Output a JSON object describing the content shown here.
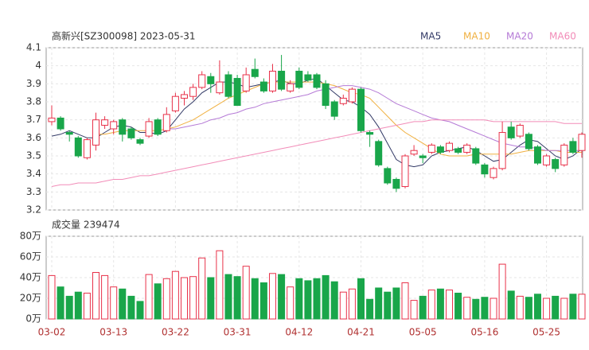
{
  "chart_data": [
    {
      "type": "candlestick",
      "title": "高新兴[SZ300098] 2023-05-31",
      "categories": [
        "03-02",
        null,
        null,
        null,
        null,
        null,
        null,
        "03-13",
        null,
        null,
        null,
        null,
        null,
        null,
        "03-22",
        null,
        null,
        null,
        null,
        null,
        null,
        "03-31",
        null,
        null,
        null,
        null,
        null,
        null,
        "04-12",
        null,
        null,
        null,
        null,
        null,
        null,
        "04-21",
        null,
        null,
        null,
        null,
        null,
        null,
        "05-05",
        null,
        null,
        null,
        null,
        null,
        null,
        "05-16",
        null,
        null,
        null,
        null,
        null,
        null,
        "05-25",
        null,
        null,
        null,
        null
      ],
      "open": [
        3.69,
        3.71,
        3.63,
        3.6,
        3.49,
        3.56,
        3.67,
        3.65,
        3.7,
        3.65,
        3.59,
        3.61,
        3.7,
        3.64,
        3.75,
        3.82,
        3.83,
        3.88,
        3.94,
        3.85,
        3.95,
        3.93,
        3.86,
        3.98,
        3.91,
        3.86,
        3.97,
        3.86,
        3.97,
        3.95,
        3.95,
        3.9,
        3.8,
        3.79,
        3.8,
        3.87,
        3.63,
        3.58,
        3.43,
        3.37,
        3.33,
        3.51,
        3.5,
        3.52,
        3.55,
        3.53,
        3.54,
        3.52,
        3.54,
        3.45,
        3.38,
        3.43,
        3.66,
        3.61,
        3.62,
        3.55,
        3.45,
        3.48,
        3.45,
        3.58,
        3.53
      ],
      "high": [
        3.78,
        3.72,
        3.64,
        3.61,
        3.6,
        3.74,
        3.72,
        3.7,
        3.71,
        3.66,
        3.6,
        3.71,
        3.71,
        3.77,
        3.85,
        3.86,
        3.9,
        3.97,
        3.96,
        4.03,
        3.97,
        3.95,
        3.99,
        4.04,
        3.93,
        4.01,
        4.06,
        3.92,
        3.99,
        3.97,
        3.96,
        3.92,
        3.81,
        3.84,
        3.88,
        3.88,
        3.64,
        3.59,
        3.44,
        3.38,
        3.51,
        3.56,
        3.51,
        3.57,
        3.56,
        3.58,
        3.55,
        3.57,
        3.55,
        3.46,
        3.44,
        3.69,
        3.69,
        3.68,
        3.63,
        3.56,
        3.51,
        3.49,
        3.57,
        3.6,
        3.63
      ],
      "low": [
        3.67,
        3.64,
        3.58,
        3.49,
        3.48,
        3.53,
        3.65,
        3.62,
        3.58,
        3.59,
        3.56,
        3.6,
        3.61,
        3.63,
        3.74,
        3.78,
        3.81,
        3.87,
        3.85,
        3.84,
        3.82,
        3.78,
        3.85,
        3.93,
        3.85,
        3.85,
        3.86,
        3.85,
        3.87,
        3.91,
        3.87,
        3.76,
        3.7,
        3.78,
        3.79,
        3.63,
        3.55,
        3.44,
        3.34,
        3.3,
        3.32,
        3.5,
        3.46,
        3.51,
        3.51,
        3.52,
        3.51,
        3.51,
        3.45,
        3.38,
        3.37,
        3.42,
        3.59,
        3.6,
        3.53,
        3.45,
        3.44,
        3.41,
        3.44,
        3.51,
        3.49
      ],
      "close": [
        3.71,
        3.65,
        3.62,
        3.5,
        3.59,
        3.7,
        3.7,
        3.69,
        3.62,
        3.6,
        3.57,
        3.69,
        3.62,
        3.73,
        3.83,
        3.84,
        3.88,
        3.95,
        3.9,
        3.91,
        3.83,
        3.78,
        3.95,
        3.94,
        3.86,
        3.97,
        3.87,
        3.9,
        3.88,
        3.92,
        3.88,
        3.78,
        3.72,
        3.82,
        3.87,
        3.64,
        3.62,
        3.45,
        3.35,
        3.32,
        3.5,
        3.53,
        3.49,
        3.56,
        3.52,
        3.57,
        3.52,
        3.56,
        3.46,
        3.4,
        3.43,
        3.63,
        3.6,
        3.67,
        3.54,
        3.46,
        3.5,
        3.43,
        3.56,
        3.52,
        3.62
      ],
      "up_color": "#e8324a",
      "down_color": "#19a64a",
      "series": [
        {
          "name": "MA5",
          "color": "#333a66",
          "values": [
            3.61,
            3.62,
            3.64,
            3.62,
            3.6,
            3.6,
            3.63,
            3.66,
            3.67,
            3.66,
            3.63,
            3.63,
            3.62,
            3.64,
            3.7,
            3.76,
            3.8,
            3.85,
            3.88,
            3.91,
            3.91,
            3.9,
            3.88,
            3.89,
            3.9,
            3.91,
            3.92,
            3.9,
            3.9,
            3.92,
            3.93,
            3.89,
            3.85,
            3.81,
            3.8,
            3.77,
            3.73,
            3.66,
            3.57,
            3.48,
            3.45,
            3.44,
            3.45,
            3.5,
            3.52,
            3.53,
            3.54,
            3.55,
            3.53,
            3.5,
            3.47,
            3.48,
            3.52,
            3.56,
            3.59,
            3.58,
            3.54,
            3.5,
            3.48,
            3.5,
            3.54
          ]
        },
        {
          "name": "MA10",
          "color": "#f0b040",
          "values": [
            null,
            null,
            null,
            null,
            null,
            3.62,
            3.62,
            3.63,
            3.64,
            3.64,
            3.64,
            3.64,
            3.64,
            3.65,
            3.66,
            3.68,
            3.7,
            3.73,
            3.76,
            3.79,
            3.82,
            3.84,
            3.86,
            3.88,
            3.9,
            3.91,
            3.91,
            3.91,
            3.91,
            3.91,
            3.91,
            3.9,
            3.89,
            3.87,
            3.85,
            3.84,
            3.82,
            3.77,
            3.72,
            3.67,
            3.63,
            3.6,
            3.57,
            3.54,
            3.51,
            3.5,
            3.5,
            3.5,
            3.51,
            3.51,
            3.51,
            3.51,
            3.51,
            3.52,
            3.53,
            3.53,
            3.53,
            3.53,
            3.52,
            3.52,
            3.52
          ]
        },
        {
          "name": "MA20",
          "color": "#b57ad6",
          "values": [
            null,
            null,
            null,
            null,
            null,
            null,
            null,
            null,
            null,
            null,
            null,
            null,
            null,
            3.65,
            3.65,
            3.66,
            3.67,
            3.68,
            3.7,
            3.71,
            3.73,
            3.74,
            3.76,
            3.77,
            3.79,
            3.8,
            3.81,
            3.82,
            3.83,
            3.84,
            3.86,
            3.87,
            3.88,
            3.89,
            3.89,
            3.88,
            3.87,
            3.85,
            3.82,
            3.79,
            3.77,
            3.75,
            3.73,
            3.71,
            3.7,
            3.69,
            3.67,
            3.65,
            3.63,
            3.61,
            3.59,
            3.57,
            3.56,
            3.55,
            3.55,
            3.54,
            3.53,
            3.53,
            3.53,
            3.53,
            3.53
          ]
        },
        {
          "name": "MA60",
          "color": "#f28cb8",
          "values": [
            3.33,
            3.34,
            3.34,
            3.35,
            3.35,
            3.35,
            3.36,
            3.37,
            3.37,
            3.38,
            3.39,
            3.39,
            3.4,
            3.41,
            3.42,
            3.43,
            3.44,
            3.45,
            3.46,
            3.47,
            3.48,
            3.49,
            3.5,
            3.51,
            3.52,
            3.53,
            3.54,
            3.55,
            3.56,
            3.57,
            3.58,
            3.59,
            3.6,
            3.61,
            3.62,
            3.63,
            3.64,
            3.65,
            3.66,
            3.67,
            3.68,
            3.69,
            3.69,
            3.7,
            3.7,
            3.7,
            3.7,
            3.7,
            3.7,
            3.7,
            3.69,
            3.69,
            3.69,
            3.69,
            3.69,
            3.69,
            3.69,
            3.69,
            3.68,
            3.68,
            3.68
          ]
        }
      ],
      "ylim": [
        3.2,
        4.1
      ],
      "yticks": [
        3.2,
        3.3,
        3.4,
        3.5,
        3.6,
        3.7,
        3.8,
        3.9,
        4,
        4.1
      ],
      "grid": true
    },
    {
      "type": "bar",
      "title": "成交量 239474",
      "values": [
        42,
        31,
        22,
        26,
        25,
        45,
        42,
        31,
        29,
        22,
        17,
        43,
        34,
        39,
        46,
        40,
        41,
        59,
        40,
        66,
        43,
        41,
        51,
        39,
        35,
        44,
        43,
        31,
        39,
        37,
        39,
        42,
        36,
        26,
        29,
        39,
        19,
        30,
        26,
        30,
        35,
        18,
        22,
        28,
        29,
        28,
        25,
        21,
        19,
        21,
        20,
        53,
        27,
        22,
        21,
        24,
        20,
        22,
        20,
        24,
        23.9474
      ],
      "ylim": [
        0,
        80
      ],
      "yticks": [
        {
          "value": 0,
          "label": "0万"
        },
        {
          "value": 20,
          "label": "20万"
        },
        {
          "value": 40,
          "label": "40万"
        },
        {
          "value": 60,
          "label": "60万"
        },
        {
          "value": 80,
          "label": "80万"
        }
      ],
      "grid": true
    }
  ]
}
